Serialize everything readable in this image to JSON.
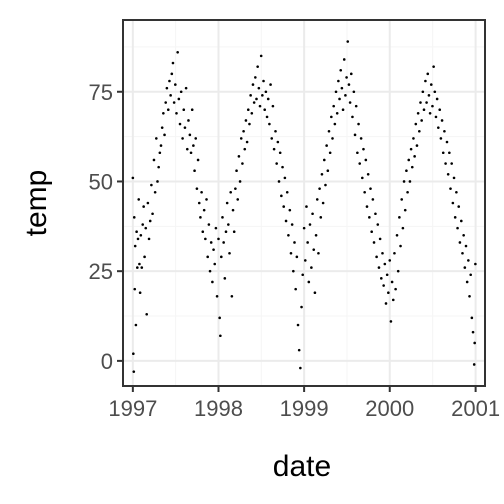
{
  "chart_data": {
    "type": "scatter",
    "title": "",
    "xlabel": "date",
    "ylabel": "temp",
    "x_type": "date",
    "xlim": [
      "1996-11-20",
      "2001-02-10"
    ],
    "ylim": [
      -7,
      95
    ],
    "x_ticks": [
      {
        "value": "1997-01-01",
        "label": "1997"
      },
      {
        "value": "1998-01-01",
        "label": "1998"
      },
      {
        "value": "1999-01-01",
        "label": "1999"
      },
      {
        "value": "2000-01-01",
        "label": "2000"
      },
      {
        "value": "2001-01-01",
        "label": "2001"
      }
    ],
    "y_ticks": [
      {
        "value": 0,
        "label": "0"
      },
      {
        "value": 25,
        "label": "25"
      },
      {
        "value": 50,
        "label": "50"
      },
      {
        "value": 75,
        "label": "75"
      }
    ],
    "grid": true,
    "legend": "none",
    "colors": {
      "panel_background": "#ffffff",
      "panel_border": "#333333",
      "grid_major": "#ebebeb",
      "grid_minor": "#f5f5f5",
      "point": "#000000",
      "tick_label": "#4d4d4d",
      "tick_mark": "#333333",
      "axis_title": "#000000"
    },
    "points": [
      [
        "1997-01-01",
        51
      ],
      [
        "1997-01-03",
        2
      ],
      [
        "1997-01-05",
        -3
      ],
      [
        "1997-01-07",
        40
      ],
      [
        "1997-01-09",
        20
      ],
      [
        "1997-01-11",
        32
      ],
      [
        "1997-01-14",
        10
      ],
      [
        "1997-01-17",
        36
      ],
      [
        "1997-01-20",
        26
      ],
      [
        "1997-01-23",
        34
      ],
      [
        "1997-01-26",
        45
      ],
      [
        "1997-01-29",
        27
      ],
      [
        "1997-02-01",
        19
      ],
      [
        "1997-02-04",
        35
      ],
      [
        "1997-02-08",
        26
      ],
      [
        "1997-02-12",
        38
      ],
      [
        "1997-02-16",
        43
      ],
      [
        "1997-02-20",
        29
      ],
      [
        "1997-02-25",
        37
      ],
      [
        "1997-03-01",
        13
      ],
      [
        "1997-03-06",
        44
      ],
      [
        "1997-03-11",
        34
      ],
      [
        "1997-03-16",
        39
      ],
      [
        "1997-03-21",
        49
      ],
      [
        "1997-03-26",
        41
      ],
      [
        "1997-04-01",
        56
      ],
      [
        "1997-04-06",
        47
      ],
      [
        "1997-04-11",
        62
      ],
      [
        "1997-04-16",
        50
      ],
      [
        "1997-04-21",
        54
      ],
      [
        "1997-04-26",
        58
      ],
      [
        "1997-05-01",
        60
      ],
      [
        "1997-05-06",
        65
      ],
      [
        "1997-05-11",
        69
      ],
      [
        "1997-05-16",
        63
      ],
      [
        "1997-05-21",
        72
      ],
      [
        "1997-05-26",
        76
      ],
      [
        "1997-06-01",
        70
      ],
      [
        "1997-06-06",
        78
      ],
      [
        "1997-06-11",
        74
      ],
      [
        "1997-06-16",
        80
      ],
      [
        "1997-06-21",
        83
      ],
      [
        "1997-06-26",
        72
      ],
      [
        "1997-07-01",
        77
      ],
      [
        "1997-07-06",
        69
      ],
      [
        "1997-07-11",
        86
      ],
      [
        "1997-07-16",
        73
      ],
      [
        "1997-07-21",
        66
      ],
      [
        "1997-07-26",
        75
      ],
      [
        "1997-08-01",
        62
      ],
      [
        "1997-08-06",
        70
      ],
      [
        "1997-08-11",
        65
      ],
      [
        "1997-08-16",
        76
      ],
      [
        "1997-08-21",
        59
      ],
      [
        "1997-08-26",
        67
      ],
      [
        "1997-09-01",
        63
      ],
      [
        "1997-09-06",
        58
      ],
      [
        "1997-09-11",
        70
      ],
      [
        "1997-09-16",
        60
      ],
      [
        "1997-09-21",
        53
      ],
      [
        "1997-09-26",
        62
      ],
      [
        "1997-10-01",
        48
      ],
      [
        "1997-10-06",
        56
      ],
      [
        "1997-10-11",
        44
      ],
      [
        "1997-10-16",
        40
      ],
      [
        "1997-10-21",
        47
      ],
      [
        "1997-10-26",
        36
      ],
      [
        "1997-11-01",
        42
      ],
      [
        "1997-11-06",
        34
      ],
      [
        "1997-11-11",
        45
      ],
      [
        "1997-11-16",
        29
      ],
      [
        "1997-11-21",
        38
      ],
      [
        "1997-11-26",
        25
      ],
      [
        "1997-12-01",
        33
      ],
      [
        "1997-12-06",
        22
      ],
      [
        "1997-12-11",
        31
      ],
      [
        "1997-12-16",
        27
      ],
      [
        "1997-12-21",
        37
      ],
      [
        "1997-12-26",
        18
      ],
      [
        "1998-01-01",
        34
      ],
      [
        "1998-01-06",
        12
      ],
      [
        "1998-01-09",
        7
      ],
      [
        "1998-01-13",
        29
      ],
      [
        "1998-01-18",
        40
      ],
      [
        "1998-01-23",
        33
      ],
      [
        "1998-01-28",
        23
      ],
      [
        "1998-02-02",
        36
      ],
      [
        "1998-02-07",
        44
      ],
      [
        "1998-02-12",
        38
      ],
      [
        "1998-02-17",
        30
      ],
      [
        "1998-02-22",
        47
      ],
      [
        "1998-02-27",
        18
      ],
      [
        "1998-03-04",
        42
      ],
      [
        "1998-03-09",
        36
      ],
      [
        "1998-03-14",
        48
      ],
      [
        "1998-03-19",
        53
      ],
      [
        "1998-03-24",
        45
      ],
      [
        "1998-03-29",
        57
      ],
      [
        "1998-04-03",
        50
      ],
      [
        "1998-04-08",
        62
      ],
      [
        "1998-04-13",
        55
      ],
      [
        "1998-04-18",
        64
      ],
      [
        "1998-04-23",
        59
      ],
      [
        "1998-04-28",
        67
      ],
      [
        "1998-05-03",
        61
      ],
      [
        "1998-05-08",
        70
      ],
      [
        "1998-05-13",
        66
      ],
      [
        "1998-05-18",
        74
      ],
      [
        "1998-05-23",
        69
      ],
      [
        "1998-05-28",
        77
      ],
      [
        "1998-06-02",
        72
      ],
      [
        "1998-06-07",
        79
      ],
      [
        "1998-06-12",
        73
      ],
      [
        "1998-06-17",
        82
      ],
      [
        "1998-06-22",
        76
      ],
      [
        "1998-06-27",
        71
      ],
      [
        "1998-07-02",
        85
      ],
      [
        "1998-07-07",
        74
      ],
      [
        "1998-07-12",
        78
      ],
      [
        "1998-07-17",
        70
      ],
      [
        "1998-07-22",
        75
      ],
      [
        "1998-07-27",
        68
      ],
      [
        "1998-08-01",
        73
      ],
      [
        "1998-08-06",
        66
      ],
      [
        "1998-08-11",
        77
      ],
      [
        "1998-08-16",
        62
      ],
      [
        "1998-08-21",
        71
      ],
      [
        "1998-08-26",
        59
      ],
      [
        "1998-09-01",
        64
      ],
      [
        "1998-09-06",
        55
      ],
      [
        "1998-09-11",
        61
      ],
      [
        "1998-09-16",
        50
      ],
      [
        "1998-09-21",
        58
      ],
      [
        "1998-09-26",
        46
      ],
      [
        "1998-10-01",
        54
      ],
      [
        "1998-10-06",
        43
      ],
      [
        "1998-10-11",
        51
      ],
      [
        "1998-10-16",
        39
      ],
      [
        "1998-10-21",
        47
      ],
      [
        "1998-10-26",
        35
      ],
      [
        "1998-11-01",
        42
      ],
      [
        "1998-11-06",
        30
      ],
      [
        "1998-11-11",
        38
      ],
      [
        "1998-11-16",
        25
      ],
      [
        "1998-11-21",
        33
      ],
      [
        "1998-11-26",
        20
      ],
      [
        "1998-12-01",
        29
      ],
      [
        "1998-12-06",
        10
      ],
      [
        "1998-12-11",
        3
      ],
      [
        "1998-12-16",
        -2
      ],
      [
        "1998-12-21",
        15
      ],
      [
        "1998-12-26",
        24
      ],
      [
        "1999-01-01",
        37
      ],
      [
        "1999-01-06",
        28
      ],
      [
        "1999-01-11",
        43
      ],
      [
        "1999-01-16",
        33
      ],
      [
        "1999-01-21",
        22
      ],
      [
        "1999-01-26",
        38
      ],
      [
        "1999-02-01",
        26
      ],
      [
        "1999-02-06",
        41
      ],
      [
        "1999-02-11",
        31
      ],
      [
        "1999-02-16",
        19
      ],
      [
        "1999-02-21",
        35
      ],
      [
        "1999-02-26",
        45
      ],
      [
        "1999-03-03",
        30
      ],
      [
        "1999-03-08",
        48
      ],
      [
        "1999-03-13",
        40
      ],
      [
        "1999-03-18",
        52
      ],
      [
        "1999-03-23",
        44
      ],
      [
        "1999-03-28",
        56
      ],
      [
        "1999-04-02",
        49
      ],
      [
        "1999-04-07",
        60
      ],
      [
        "1999-04-12",
        53
      ],
      [
        "1999-04-17",
        64
      ],
      [
        "1999-04-22",
        58
      ],
      [
        "1999-04-27",
        68
      ],
      [
        "1999-05-02",
        62
      ],
      [
        "1999-05-07",
        71
      ],
      [
        "1999-05-12",
        66
      ],
      [
        "1999-05-17",
        75
      ],
      [
        "1999-05-22",
        69
      ],
      [
        "1999-05-27",
        78
      ],
      [
        "1999-06-01",
        73
      ],
      [
        "1999-06-06",
        81
      ],
      [
        "1999-06-11",
        76
      ],
      [
        "1999-06-16",
        70
      ],
      [
        "1999-06-21",
        84
      ],
      [
        "1999-06-26",
        74
      ],
      [
        "1999-07-01",
        79
      ],
      [
        "1999-07-06",
        89
      ],
      [
        "1999-07-11",
        77
      ],
      [
        "1999-07-16",
        72
      ],
      [
        "1999-07-21",
        80
      ],
      [
        "1999-07-26",
        68
      ],
      [
        "1999-08-01",
        75
      ],
      [
        "1999-08-06",
        63
      ],
      [
        "1999-08-11",
        71
      ],
      [
        "1999-08-16",
        58
      ],
      [
        "1999-08-21",
        66
      ],
      [
        "1999-08-26",
        55
      ],
      [
        "1999-09-01",
        62
      ],
      [
        "1999-09-06",
        51
      ],
      [
        "1999-09-11",
        59
      ],
      [
        "1999-09-16",
        47
      ],
      [
        "1999-09-21",
        56
      ],
      [
        "1999-09-26",
        43
      ],
      [
        "1999-10-01",
        52
      ],
      [
        "1999-10-06",
        40
      ],
      [
        "1999-10-11",
        48
      ],
      [
        "1999-10-16",
        36
      ],
      [
        "1999-10-21",
        45
      ],
      [
        "1999-10-26",
        33
      ],
      [
        "1999-11-01",
        41
      ],
      [
        "1999-11-06",
        29
      ],
      [
        "1999-11-11",
        38
      ],
      [
        "1999-11-16",
        26
      ],
      [
        "1999-11-21",
        34
      ],
      [
        "1999-11-26",
        23
      ],
      [
        "1999-12-01",
        30
      ],
      [
        "1999-12-06",
        21
      ],
      [
        "1999-12-11",
        27
      ],
      [
        "1999-12-16",
        16
      ],
      [
        "1999-12-21",
        24
      ],
      [
        "1999-12-26",
        19
      ],
      [
        "2000-01-01",
        28
      ],
      [
        "2000-01-06",
        11
      ],
      [
        "2000-01-11",
        22
      ],
      [
        "2000-01-16",
        17
      ],
      [
        "2000-01-21",
        30
      ],
      [
        "2000-01-26",
        20
      ],
      [
        "2000-02-01",
        35
      ],
      [
        "2000-02-06",
        25
      ],
      [
        "2000-02-11",
        40
      ],
      [
        "2000-02-16",
        32
      ],
      [
        "2000-02-21",
        45
      ],
      [
        "2000-02-26",
        37
      ],
      [
        "2000-03-02",
        50
      ],
      [
        "2000-03-07",
        42
      ],
      [
        "2000-03-12",
        53
      ],
      [
        "2000-03-17",
        47
      ],
      [
        "2000-03-22",
        56
      ],
      [
        "2000-03-27",
        50
      ],
      [
        "2000-04-01",
        59
      ],
      [
        "2000-04-06",
        54
      ],
      [
        "2000-04-11",
        62
      ],
      [
        "2000-04-16",
        57
      ],
      [
        "2000-04-21",
        66
      ],
      [
        "2000-04-26",
        60
      ],
      [
        "2000-05-01",
        69
      ],
      [
        "2000-05-06",
        64
      ],
      [
        "2000-05-11",
        72
      ],
      [
        "2000-05-16",
        67
      ],
      [
        "2000-05-21",
        75
      ],
      [
        "2000-05-26",
        70
      ],
      [
        "2000-06-01",
        78
      ],
      [
        "2000-06-06",
        72
      ],
      [
        "2000-06-11",
        80
      ],
      [
        "2000-06-16",
        74
      ],
      [
        "2000-06-21",
        69
      ],
      [
        "2000-06-26",
        77
      ],
      [
        "2000-07-01",
        71
      ],
      [
        "2000-07-06",
        82
      ],
      [
        "2000-07-11",
        75
      ],
      [
        "2000-07-16",
        68
      ],
      [
        "2000-07-21",
        73
      ],
      [
        "2000-07-26",
        65
      ],
      [
        "2000-08-01",
        70
      ],
      [
        "2000-08-06",
        62
      ],
      [
        "2000-08-11",
        67
      ],
      [
        "2000-08-16",
        58
      ],
      [
        "2000-08-21",
        64
      ],
      [
        "2000-08-26",
        55
      ],
      [
        "2000-09-01",
        61
      ],
      [
        "2000-09-06",
        52
      ],
      [
        "2000-09-11",
        58
      ],
      [
        "2000-09-16",
        48
      ],
      [
        "2000-09-21",
        55
      ],
      [
        "2000-09-26",
        44
      ],
      [
        "2000-10-01",
        51
      ],
      [
        "2000-10-06",
        40
      ],
      [
        "2000-10-11",
        47
      ],
      [
        "2000-10-16",
        37
      ],
      [
        "2000-10-21",
        43
      ],
      [
        "2000-10-26",
        33
      ],
      [
        "2000-11-01",
        39
      ],
      [
        "2000-11-06",
        30
      ],
      [
        "2000-11-11",
        35
      ],
      [
        "2000-11-16",
        26
      ],
      [
        "2000-11-21",
        32
      ],
      [
        "2000-11-26",
        22
      ],
      [
        "2000-12-01",
        28
      ],
      [
        "2000-12-06",
        18
      ],
      [
        "2000-12-11",
        24
      ],
      [
        "2000-12-16",
        12
      ],
      [
        "2000-12-21",
        8
      ],
      [
        "2000-12-26",
        -1
      ],
      [
        "2000-12-28",
        5
      ],
      [
        "2000-12-31",
        27
      ]
    ]
  }
}
